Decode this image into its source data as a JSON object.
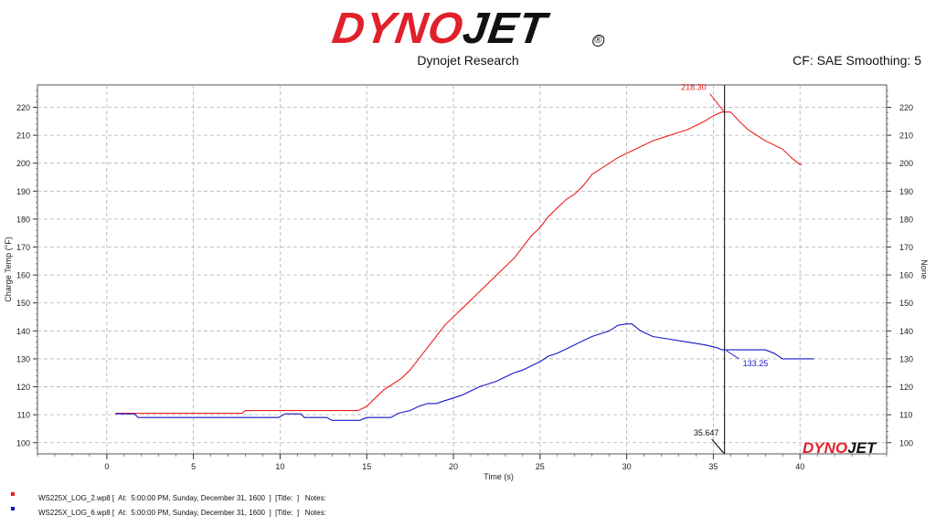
{
  "header": {
    "logo_part1": "DYNO",
    "logo_part2": "JET",
    "logo_reg": "®",
    "subtitle": "Dynojet Research",
    "settings": "CF: SAE Smoothing: 5"
  },
  "colors": {
    "series1": "#ee1c1c",
    "series2": "#1515c8",
    "logo_red": "#e0202a",
    "grid": "#b0b0b0"
  },
  "watermark": {
    "part1": "DYNO",
    "part2": "JET"
  },
  "legend": [
    {
      "text": "WS225X_LOG_2.wp8 [  At:  5:00:00 PM, Sunday, December 31, 1600  ]  [Title:  ]   Notes:",
      "color": "#ee1c1c"
    },
    {
      "text": "WS225X_LOG_6.wp8 [  At:  5:00:00 PM, Sunday, December 31, 1600  ]  [Title:  ]   Notes:",
      "color": "#1515c8"
    }
  ],
  "chart_data": {
    "type": "line",
    "xlabel": "Time (s)",
    "ylabel": "Charge Temp (°F)",
    "ylabel_right": "None",
    "xlim": [
      -4,
      45
    ],
    "ylim": [
      96,
      228
    ],
    "x_ticks": [
      0,
      5,
      10,
      15,
      20,
      25,
      30,
      35,
      40
    ],
    "y_ticks": [
      100,
      110,
      120,
      130,
      140,
      150,
      160,
      170,
      180,
      190,
      200,
      210,
      220
    ],
    "grid": true,
    "cursor": {
      "x": 35.647,
      "label": "35.647"
    },
    "annotations": [
      {
        "series": 0,
        "x": 35.647,
        "y": 218.3,
        "label": "218.30"
      },
      {
        "series": 1,
        "x": 35.647,
        "y": 133.25,
        "label": "133.25"
      }
    ],
    "series": [
      {
        "points": [
          [
            0.5,
            110.5
          ],
          [
            7.8,
            110.5
          ],
          [
            8.0,
            111.5
          ],
          [
            14.5,
            111.5
          ],
          [
            15.0,
            113
          ],
          [
            15.5,
            116
          ],
          [
            16.0,
            119
          ],
          [
            16.5,
            121
          ],
          [
            17.0,
            123
          ],
          [
            17.5,
            126
          ],
          [
            18.0,
            130
          ],
          [
            18.5,
            134
          ],
          [
            19.0,
            138
          ],
          [
            19.5,
            142
          ],
          [
            20.0,
            145
          ],
          [
            20.5,
            148
          ],
          [
            21.0,
            151
          ],
          [
            21.5,
            154
          ],
          [
            22.0,
            157
          ],
          [
            22.5,
            160
          ],
          [
            23.0,
            163
          ],
          [
            23.5,
            166
          ],
          [
            24.0,
            170
          ],
          [
            24.5,
            174
          ],
          [
            25.0,
            177
          ],
          [
            25.5,
            181
          ],
          [
            26.0,
            184
          ],
          [
            26.5,
            187
          ],
          [
            27.0,
            189
          ],
          [
            27.5,
            192
          ],
          [
            28.0,
            196
          ],
          [
            28.5,
            198
          ],
          [
            29.0,
            200
          ],
          [
            29.5,
            202
          ],
          [
            30.0,
            203.5
          ],
          [
            30.5,
            205
          ],
          [
            31.0,
            206.5
          ],
          [
            31.5,
            208
          ],
          [
            32.0,
            209
          ],
          [
            32.5,
            210
          ],
          [
            33.0,
            211
          ],
          [
            33.5,
            212
          ],
          [
            34.0,
            213.5
          ],
          [
            34.5,
            215
          ],
          [
            35.0,
            217
          ],
          [
            35.5,
            218.3
          ],
          [
            36.0,
            218.3
          ],
          [
            36.5,
            215
          ],
          [
            37.0,
            212
          ],
          [
            37.5,
            210
          ],
          [
            38.0,
            208
          ],
          [
            38.5,
            206.5
          ],
          [
            39.0,
            205
          ],
          [
            39.5,
            202
          ],
          [
            40.0,
            199.5
          ],
          [
            40.1,
            199.5
          ]
        ]
      },
      {
        "points": [
          [
            0.5,
            110.3
          ],
          [
            1.6,
            110.3
          ],
          [
            1.8,
            109
          ],
          [
            9.9,
            109
          ],
          [
            10.3,
            110.3
          ],
          [
            11.2,
            110.3
          ],
          [
            11.4,
            109
          ],
          [
            12.7,
            109
          ],
          [
            13.0,
            108
          ],
          [
            14.6,
            108
          ],
          [
            15.0,
            109
          ],
          [
            16.4,
            109
          ],
          [
            16.8,
            110.5
          ],
          [
            17.5,
            111.5
          ],
          [
            18.0,
            113
          ],
          [
            18.5,
            114
          ],
          [
            19.0,
            114
          ],
          [
            19.5,
            115
          ],
          [
            20.0,
            116
          ],
          [
            20.5,
            117
          ],
          [
            21.0,
            118.5
          ],
          [
            21.5,
            120
          ],
          [
            22.0,
            121
          ],
          [
            22.5,
            122
          ],
          [
            23.0,
            123.5
          ],
          [
            23.5,
            125
          ],
          [
            24.0,
            126
          ],
          [
            24.5,
            127.5
          ],
          [
            25.0,
            129
          ],
          [
            25.5,
            131
          ],
          [
            26.0,
            132
          ],
          [
            26.5,
            133.5
          ],
          [
            27.0,
            135
          ],
          [
            27.5,
            136.5
          ],
          [
            28.0,
            138
          ],
          [
            28.5,
            139
          ],
          [
            29.0,
            140
          ],
          [
            29.5,
            142
          ],
          [
            30.0,
            142.5
          ],
          [
            30.3,
            142.5
          ],
          [
            30.8,
            140
          ],
          [
            31.5,
            138
          ],
          [
            32.5,
            137
          ],
          [
            33.5,
            136
          ],
          [
            34.5,
            135
          ],
          [
            35.2,
            134
          ],
          [
            35.5,
            133.2
          ],
          [
            38.0,
            133.2
          ],
          [
            38.5,
            132
          ],
          [
            39.0,
            130
          ],
          [
            40.8,
            130
          ]
        ]
      }
    ]
  }
}
